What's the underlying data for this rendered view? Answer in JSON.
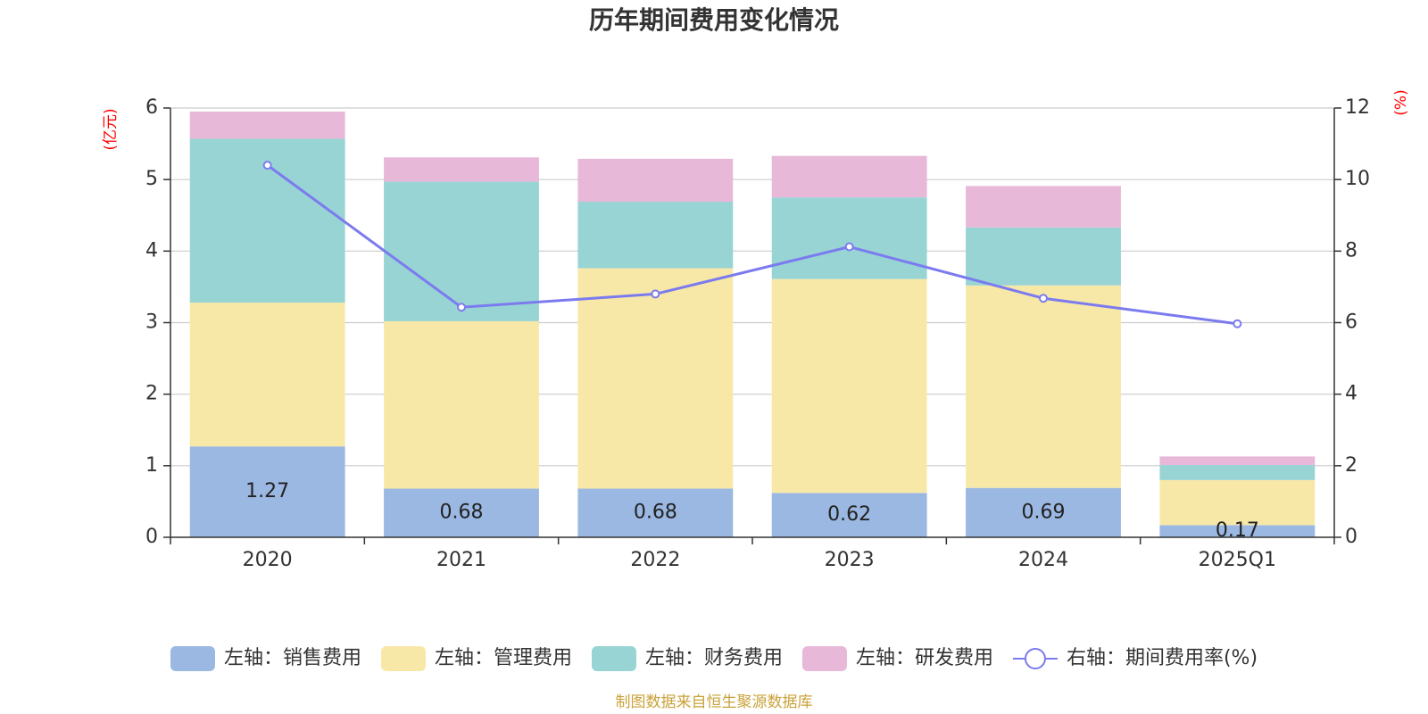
{
  "chart_data": {
    "type": "bar",
    "title": "历年期间费用变化情况",
    "categories": [
      "2020",
      "2021",
      "2022",
      "2023",
      "2024",
      "2025Q1"
    ],
    "left_axis": {
      "unit": "(亿元)",
      "ylim": [
        0,
        6
      ],
      "ticks": [
        "0",
        "1",
        "2",
        "3",
        "4",
        "5",
        "6"
      ]
    },
    "right_axis": {
      "unit": "(%)",
      "ylim": [
        0,
        12
      ],
      "ticks": [
        "0",
        "2",
        "4",
        "6",
        "8",
        "10",
        "12"
      ]
    },
    "series": [
      {
        "name": "左轴：销售费用",
        "axis": "left",
        "color": "#9bb8e3",
        "values": [
          1.27,
          0.68,
          0.68,
          0.62,
          0.69,
          0.17
        ],
        "labels": [
          "1.27",
          "0.68",
          "0.68",
          "0.62",
          "0.69",
          "0.17"
        ]
      },
      {
        "name": "左轴：管理费用",
        "axis": "left",
        "color": "#f8e8a8",
        "values": [
          2.01,
          2.34,
          3.08,
          2.99,
          2.83,
          0.63
        ]
      },
      {
        "name": "左轴：财务费用",
        "axis": "left",
        "color": "#98d4d4",
        "values": [
          2.29,
          1.95,
          0.93,
          1.14,
          0.81,
          0.21
        ]
      },
      {
        "name": "左轴：研发费用",
        "axis": "left",
        "color": "#e8b8d8",
        "values": [
          0.38,
          0.34,
          0.6,
          0.58,
          0.58,
          0.12
        ]
      },
      {
        "name": "右轴：期间费用率(%)",
        "axis": "right",
        "type": "line",
        "color": "#7b7bef",
        "values": [
          10.4,
          6.43,
          6.8,
          8.12,
          6.68,
          5.97
        ]
      }
    ]
  },
  "source": "制图数据来自恒生聚源数据库"
}
